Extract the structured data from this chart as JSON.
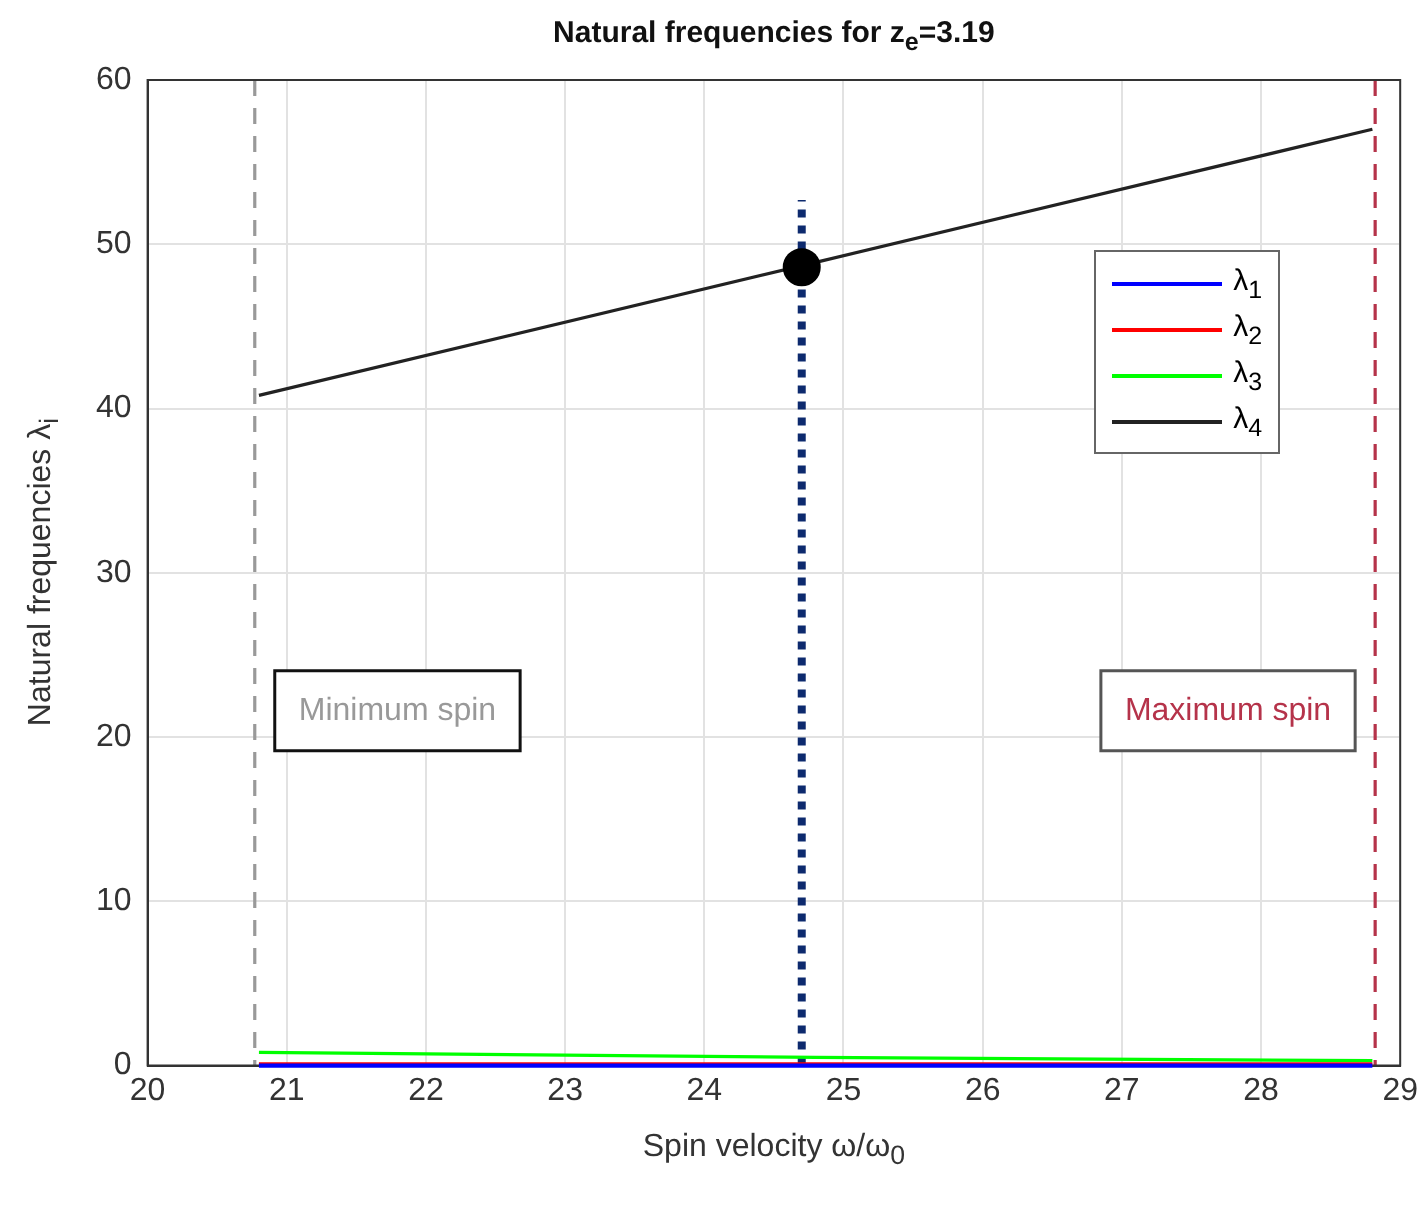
{
  "chart_data": {
    "type": "line",
    "title": "Natural frequencies for z$_{e}$=3.19",
    "xlabel": "Spin velocity ω/ω$_{0}$",
    "ylabel": "Natural frequencies λ$_{i}$",
    "xlim": [
      20,
      29
    ],
    "xticks": [
      20,
      21,
      22,
      23,
      24,
      25,
      26,
      27,
      28,
      29
    ],
    "ylim": [
      0,
      60
    ],
    "yticks": [
      0,
      10,
      20,
      30,
      40,
      50,
      60
    ],
    "grid": true,
    "legend": "top right",
    "series": [
      {
        "name": "λ$_{1}$",
        "color": "#0000ff",
        "x": [
          20.8,
          24.8,
          28.8
        ],
        "values": [
          0,
          0,
          0
        ]
      },
      {
        "name": "λ$_{2}$",
        "color": "#ff0000",
        "x": [
          20.8,
          24.8,
          28.8
        ],
        "values": [
          0.1,
          0.1,
          0.1
        ]
      },
      {
        "name": "λ$_{3}$",
        "color": "#00ff00",
        "x": [
          20.8,
          24.8,
          28.8
        ],
        "values": [
          0.8,
          0.5,
          0.3
        ]
      },
      {
        "name": "λ$_{4}$",
        "color": "#222222",
        "x": [
          20.8,
          24.8,
          28.8
        ],
        "values": [
          40.8,
          48.9,
          57
        ]
      },
      {
        "type": "line",
        "color": "#0d2a6e",
        "line_style": "dotted",
        "x": [
          24.7,
          24.7
        ],
        "values": [
          0,
          52.7
        ]
      },
      {
        "type": "scatter",
        "color": "#000000",
        "marker": "circle",
        "x": [
          24.7
        ],
        "values": [
          48.6
        ]
      }
    ],
    "ref_lines": [
      {
        "axis": "x",
        "value": 20.77,
        "label": "Minimum spin",
        "color": "#999999",
        "line_style": "dashed"
      },
      {
        "axis": "x",
        "value": 28.82,
        "label": "Maximum spin",
        "color": "#b5334a",
        "line_style": "dashed"
      }
    ]
  }
}
